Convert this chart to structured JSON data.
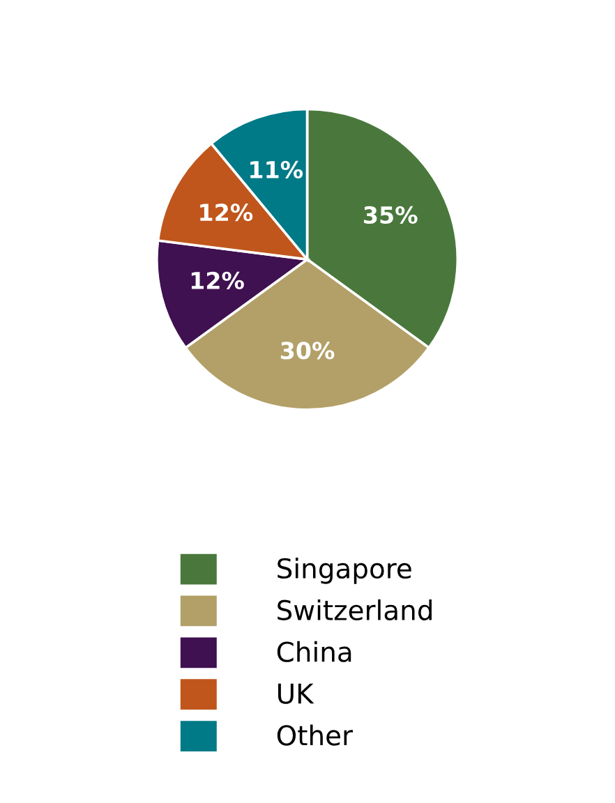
{
  "chart_data": {
    "type": "pie",
    "categories": [
      "Singapore",
      "Switzerland",
      "China",
      "UK",
      "Other"
    ],
    "values": [
      35,
      30,
      12,
      12,
      11
    ],
    "value_labels": [
      "35%",
      "30%",
      "12%",
      "12%",
      "11%"
    ],
    "colors": [
      "#4a783c",
      "#b3a068",
      "#3f1150",
      "#c0561c",
      "#007a87"
    ],
    "legend": "bottom"
  }
}
